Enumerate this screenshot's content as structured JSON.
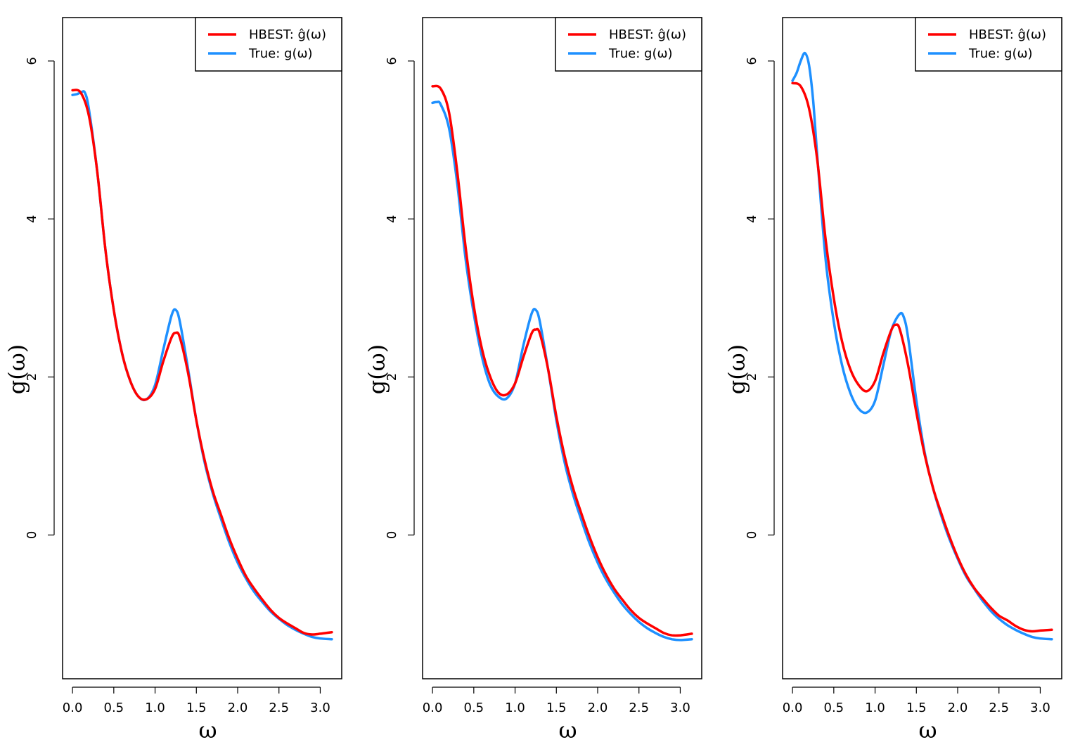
{
  "colors": {
    "hbest": "#ff0000",
    "true": "#1e90ff",
    "axis": "#000000"
  },
  "chart_data": [
    {
      "type": "line",
      "panel": "left",
      "xlabel": "ω",
      "ylabel": "g(ω)",
      "xlim": [
        -0.12,
        3.26
      ],
      "ylim": [
        -1.82,
        6.55
      ],
      "xticks": [
        0.0,
        0.5,
        1.0,
        1.5,
        2.0,
        2.5,
        3.0
      ],
      "xtick_labels": [
        "0.0",
        "0.5",
        "1.0",
        "1.5",
        "2.0",
        "2.5",
        "3.0"
      ],
      "yticks": [
        0,
        2,
        4,
        6
      ],
      "ytick_labels": [
        "0",
        "2",
        "4",
        "6"
      ],
      "legend": {
        "position": "top-right",
        "entries": [
          {
            "label": "HBEST: ĝ(ω)",
            "series": "HBEST"
          },
          {
            "label": "True: g(ω)",
            "series": "True"
          }
        ]
      },
      "series": [
        {
          "name": "HBEST",
          "color": "#ff0000",
          "x": [
            0.0,
            0.1,
            0.2,
            0.3,
            0.4,
            0.5,
            0.6,
            0.7,
            0.8,
            0.9,
            1.0,
            1.1,
            1.2,
            1.25,
            1.3,
            1.4,
            1.5,
            1.6,
            1.7,
            1.8,
            1.9,
            2.0,
            2.1,
            2.2,
            2.3,
            2.4,
            2.5,
            2.6,
            2.7,
            2.8,
            2.9,
            3.0,
            3.14
          ],
          "y": [
            5.63,
            5.6,
            5.3,
            4.6,
            3.6,
            2.85,
            2.3,
            1.95,
            1.75,
            1.72,
            1.85,
            2.2,
            2.5,
            2.56,
            2.5,
            2.05,
            1.45,
            0.95,
            0.55,
            0.25,
            -0.05,
            -0.3,
            -0.52,
            -0.68,
            -0.82,
            -0.95,
            -1.05,
            -1.12,
            -1.18,
            -1.24,
            -1.26,
            -1.25,
            -1.23
          ]
        },
        {
          "name": "True",
          "color": "#1e90ff",
          "x": [
            0.0,
            0.05,
            0.1,
            0.15,
            0.2,
            0.3,
            0.4,
            0.5,
            0.6,
            0.7,
            0.8,
            0.9,
            1.0,
            1.1,
            1.2,
            1.25,
            1.3,
            1.4,
            1.5,
            1.6,
            1.7,
            1.8,
            1.9,
            2.0,
            2.1,
            2.2,
            2.3,
            2.4,
            2.5,
            2.6,
            2.7,
            2.8,
            2.9,
            3.0,
            3.14
          ],
          "y": [
            5.57,
            5.58,
            5.6,
            5.6,
            5.38,
            4.6,
            3.6,
            2.85,
            2.3,
            1.95,
            1.75,
            1.72,
            1.9,
            2.35,
            2.78,
            2.85,
            2.7,
            2.1,
            1.45,
            0.92,
            0.52,
            0.2,
            -0.1,
            -0.35,
            -0.55,
            -0.72,
            -0.85,
            -0.97,
            -1.06,
            -1.14,
            -1.2,
            -1.25,
            -1.29,
            -1.31,
            -1.32
          ]
        }
      ]
    },
    {
      "type": "line",
      "panel": "middle",
      "xlabel": "ω",
      "ylabel": "g(ω)",
      "xlim": [
        -0.12,
        3.26
      ],
      "ylim": [
        -1.82,
        6.55
      ],
      "xticks": [
        0.0,
        0.5,
        1.0,
        1.5,
        2.0,
        2.5,
        3.0
      ],
      "xtick_labels": [
        "0.0",
        "0.5",
        "1.0",
        "1.5",
        "2.0",
        "2.5",
        "3.0"
      ],
      "yticks": [
        0,
        2,
        4,
        6
      ],
      "ytick_labels": [
        "0",
        "2",
        "4",
        "6"
      ],
      "legend": {
        "position": "top-right",
        "entries": [
          {
            "label": "HBEST: ĝ(ω)",
            "series": "HBEST"
          },
          {
            "label": "True: g(ω)",
            "series": "True"
          }
        ]
      },
      "series": [
        {
          "name": "HBEST",
          "color": "#ff0000",
          "x": [
            0.0,
            0.1,
            0.2,
            0.3,
            0.4,
            0.5,
            0.6,
            0.7,
            0.8,
            0.9,
            1.0,
            1.1,
            1.2,
            1.25,
            1.3,
            1.4,
            1.5,
            1.6,
            1.7,
            1.8,
            1.9,
            2.0,
            2.1,
            2.2,
            2.3,
            2.4,
            2.5,
            2.6,
            2.7,
            2.8,
            2.9,
            3.0,
            3.14
          ],
          "y": [
            5.68,
            5.65,
            5.35,
            4.6,
            3.65,
            2.9,
            2.35,
            2.0,
            1.8,
            1.78,
            1.92,
            2.25,
            2.55,
            2.6,
            2.55,
            2.1,
            1.5,
            1.0,
            0.6,
            0.28,
            -0.02,
            -0.28,
            -0.5,
            -0.68,
            -0.82,
            -0.95,
            -1.05,
            -1.12,
            -1.18,
            -1.24,
            -1.27,
            -1.27,
            -1.25
          ]
        },
        {
          "name": "True",
          "color": "#1e90ff",
          "x": [
            0.0,
            0.05,
            0.1,
            0.2,
            0.3,
            0.4,
            0.5,
            0.6,
            0.7,
            0.8,
            0.9,
            1.0,
            1.1,
            1.2,
            1.25,
            1.3,
            1.4,
            1.5,
            1.6,
            1.7,
            1.8,
            1.9,
            2.0,
            2.1,
            2.2,
            2.3,
            2.4,
            2.5,
            2.6,
            2.7,
            2.8,
            2.9,
            3.0,
            3.14
          ],
          "y": [
            5.47,
            5.48,
            5.45,
            5.15,
            4.45,
            3.5,
            2.8,
            2.25,
            1.9,
            1.75,
            1.73,
            1.92,
            2.4,
            2.8,
            2.85,
            2.7,
            2.1,
            1.45,
            0.92,
            0.52,
            0.2,
            -0.1,
            -0.35,
            -0.56,
            -0.73,
            -0.88,
            -1.0,
            -1.1,
            -1.18,
            -1.24,
            -1.29,
            -1.32,
            -1.33,
            -1.32
          ]
        }
      ]
    },
    {
      "type": "line",
      "panel": "right",
      "xlabel": "ω",
      "ylabel": "g(ω)",
      "xlim": [
        -0.12,
        3.26
      ],
      "ylim": [
        -1.82,
        6.55
      ],
      "xticks": [
        0.0,
        0.5,
        1.0,
        1.5,
        2.0,
        2.5,
        3.0
      ],
      "xtick_labels": [
        "0.0",
        "0.5",
        "1.0",
        "1.5",
        "2.0",
        "2.5",
        "3.0"
      ],
      "yticks": [
        0,
        2,
        4,
        6
      ],
      "ytick_labels": [
        "0",
        "2",
        "4",
        "6"
      ],
      "legend": {
        "position": "top-right",
        "entries": [
          {
            "label": "HBEST: ĝ(ω)",
            "series": "HBEST"
          },
          {
            "label": "True: g(ω)",
            "series": "True"
          }
        ]
      },
      "series": [
        {
          "name": "HBEST",
          "color": "#ff0000",
          "x": [
            0.0,
            0.1,
            0.2,
            0.3,
            0.4,
            0.5,
            0.6,
            0.7,
            0.8,
            0.9,
            1.0,
            1.1,
            1.2,
            1.25,
            1.3,
            1.4,
            1.5,
            1.6,
            1.7,
            1.8,
            1.9,
            2.0,
            2.1,
            2.2,
            2.3,
            2.4,
            2.5,
            2.6,
            2.7,
            2.8,
            2.9,
            3.0,
            3.14
          ],
          "y": [
            5.72,
            5.68,
            5.4,
            4.75,
            3.75,
            3.0,
            2.45,
            2.1,
            1.9,
            1.82,
            1.95,
            2.3,
            2.6,
            2.66,
            2.6,
            2.15,
            1.55,
            1.02,
            0.6,
            0.28,
            -0.02,
            -0.28,
            -0.5,
            -0.67,
            -0.8,
            -0.92,
            -1.02,
            -1.08,
            -1.15,
            -1.2,
            -1.22,
            -1.21,
            -1.2
          ]
        },
        {
          "name": "True",
          "color": "#1e90ff",
          "x": [
            0.0,
            0.05,
            0.1,
            0.15,
            0.2,
            0.25,
            0.3,
            0.4,
            0.5,
            0.6,
            0.7,
            0.8,
            0.9,
            1.0,
            1.1,
            1.2,
            1.3,
            1.35,
            1.4,
            1.5,
            1.6,
            1.7,
            1.8,
            1.9,
            2.0,
            2.1,
            2.2,
            2.3,
            2.4,
            2.5,
            2.6,
            2.7,
            2.8,
            2.9,
            3.0,
            3.14
          ],
          "y": [
            5.75,
            5.85,
            6.0,
            6.1,
            5.95,
            5.5,
            4.8,
            3.5,
            2.7,
            2.15,
            1.8,
            1.6,
            1.55,
            1.7,
            2.15,
            2.6,
            2.8,
            2.75,
            2.5,
            1.7,
            1.05,
            0.6,
            0.25,
            -0.05,
            -0.3,
            -0.52,
            -0.68,
            -0.83,
            -0.96,
            -1.06,
            -1.14,
            -1.2,
            -1.25,
            -1.29,
            -1.31,
            -1.32
          ]
        }
      ]
    }
  ]
}
